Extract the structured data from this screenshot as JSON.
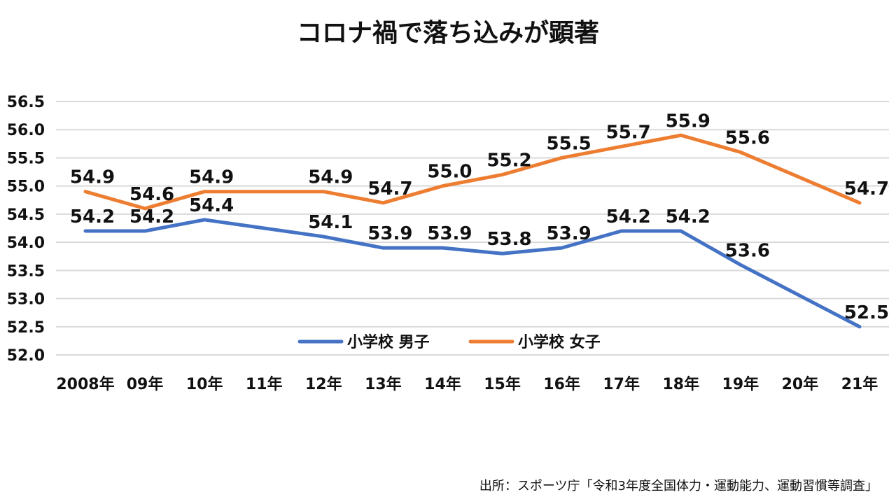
{
  "chart_data": {
    "type": "line",
    "title": "コロナ禍で落ち込みが顕著",
    "categories": [
      "2008年",
      "09年",
      "10年",
      "11年",
      "12年",
      "13年",
      "14年",
      "15年",
      "16年",
      "17年",
      "18年",
      "19年",
      "20年",
      "21年"
    ],
    "series": [
      {
        "name": "小学校 男子",
        "color": "#4472C4",
        "values": [
          54.2,
          54.2,
          54.4,
          54.25,
          54.1,
          53.9,
          53.9,
          53.8,
          53.9,
          54.2,
          54.2,
          53.6,
          53.05,
          52.5
        ],
        "labels": [
          "54.2",
          "54.2",
          "54.4",
          "",
          "54.1",
          "53.9",
          "53.9",
          "53.8",
          "53.9",
          "54.2",
          "54.2",
          "53.6",
          "",
          "52.5"
        ]
      },
      {
        "name": "小学校 女子",
        "color": "#ED7D31",
        "values": [
          54.9,
          54.6,
          54.9,
          54.9,
          54.9,
          54.7,
          55.0,
          55.2,
          55.5,
          55.7,
          55.9,
          55.6,
          55.15,
          54.7
        ],
        "labels": [
          "54.9",
          "54.6",
          "54.9",
          "",
          "54.9",
          "54.7",
          "55.0",
          "55.2",
          "55.5",
          "55.7",
          "55.9",
          "55.6",
          "",
          "54.7"
        ]
      }
    ],
    "ylim": [
      52.0,
      56.5
    ],
    "yticks": [
      "52.0",
      "52.5",
      "53.0",
      "53.5",
      "54.0",
      "54.5",
      "55.0",
      "55.5",
      "56.0",
      "56.5"
    ],
    "grid": true,
    "legend": "bottom-center"
  },
  "source_note": "出所：スポーツ庁「令和3年度全国体力・運動能力、運動習慣等調査」"
}
